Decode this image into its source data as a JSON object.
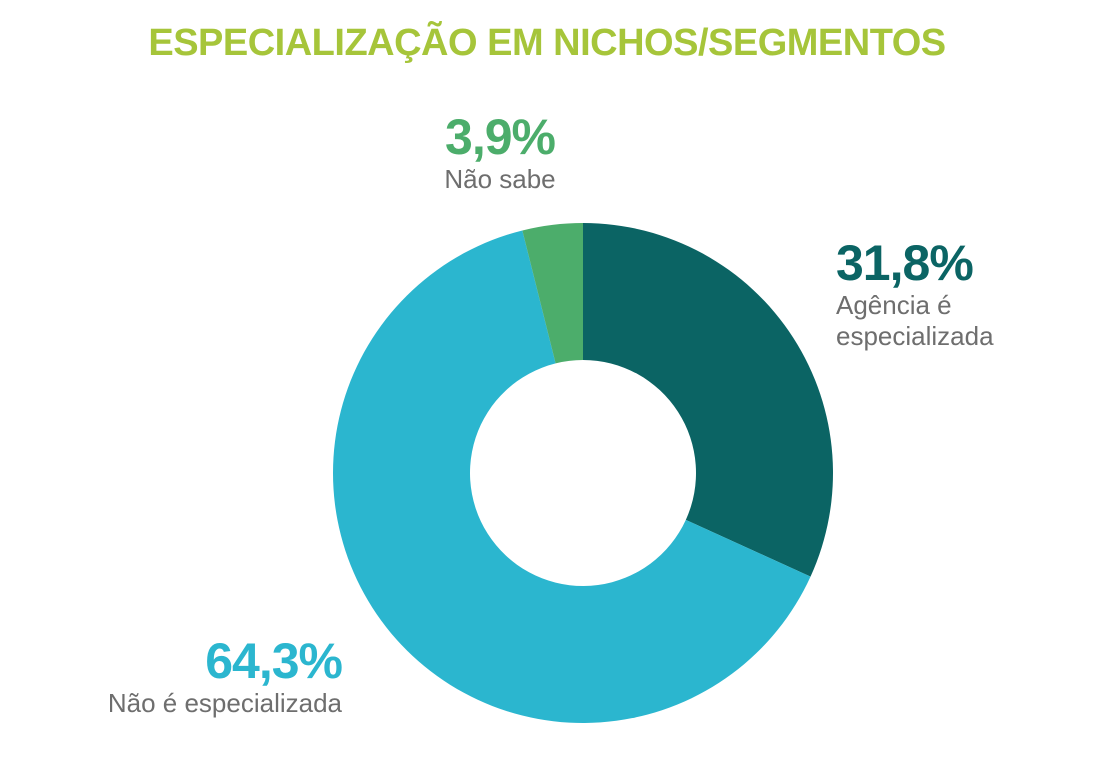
{
  "title": "ESPECIALIZAÇÃO EM NICHOS/SEGMENTOS",
  "colors": {
    "title": "#a6c53a",
    "agencia": "#0b6464",
    "nao_especializada": "#2bb6cf",
    "nao_sabe": "#4cad6b"
  },
  "chart_data": {
    "type": "pie",
    "title": "ESPECIALIZAÇÃO EM NICHOS/SEGMENTOS",
    "donut": true,
    "slices": [
      {
        "label": "Agência é especializada",
        "value": 31.8,
        "display": "31,8%",
        "color": "#0b6464"
      },
      {
        "label": "Não é especializada",
        "value": 64.3,
        "display": "64,3%",
        "color": "#2bb6cf"
      },
      {
        "label": "Não sabe",
        "value": 3.9,
        "display": "3,9%",
        "color": "#4cad6b"
      }
    ]
  }
}
